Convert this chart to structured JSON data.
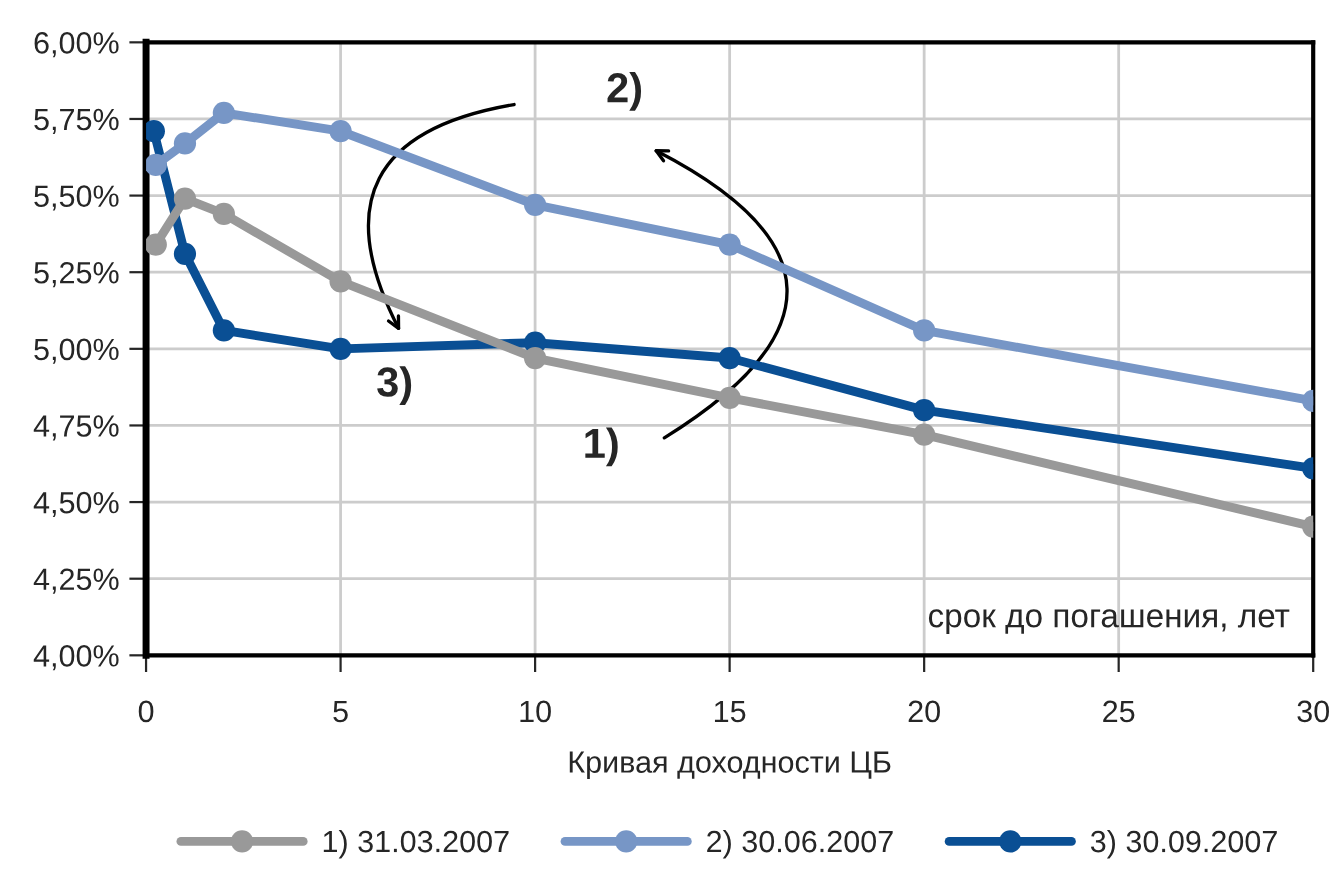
{
  "chart_data": {
    "type": "line",
    "series": [
      {
        "name": "1) 31.03.2007",
        "color": "#999999",
        "x": [
          0.25,
          1,
          2,
          5,
          10,
          15,
          20,
          30
        ],
        "values": [
          5.34,
          5.49,
          5.44,
          5.22,
          4.97,
          4.84,
          4.72,
          4.42
        ]
      },
      {
        "name": "2) 30.06.2007",
        "color": "#7796c6",
        "x": [
          0.25,
          1,
          2,
          5,
          10,
          15,
          20,
          30
        ],
        "values": [
          5.6,
          5.67,
          5.77,
          5.71,
          5.47,
          5.34,
          5.06,
          4.83
        ]
      },
      {
        "name": "3) 30.09.2007",
        "color": "#0a4f94",
        "x": [
          0.2,
          1,
          2,
          5,
          10,
          15,
          20,
          30
        ],
        "values": [
          5.71,
          5.31,
          5.06,
          5.0,
          5.02,
          4.97,
          4.8,
          4.61
        ]
      }
    ],
    "xlabel": "Кривая доходности ЦБ",
    "annotations": [
      "срок до погашения, лет",
      "1)",
      "2)",
      "3)"
    ],
    "xlim": [
      0,
      30
    ],
    "xticks": [
      0,
      5,
      10,
      15,
      20,
      25,
      30
    ],
    "ylim": [
      4.0,
      6.0
    ],
    "yticks": [
      {
        "value": 4.0,
        "label": "4,00%"
      },
      {
        "value": 4.25,
        "label": "4,25%"
      },
      {
        "value": 4.5,
        "label": "4,50%"
      },
      {
        "value": 4.75,
        "label": "4,75%"
      },
      {
        "value": 5.0,
        "label": "5,00%"
      },
      {
        "value": 5.25,
        "label": "5,25%"
      },
      {
        "value": 5.5,
        "label": "5,50%"
      },
      {
        "value": 5.75,
        "label": "5,75%"
      },
      {
        "value": 6.0,
        "label": "6,00%"
      }
    ],
    "grid": true,
    "legend": "bottom",
    "marker": "circle",
    "line_style": "solid"
  }
}
